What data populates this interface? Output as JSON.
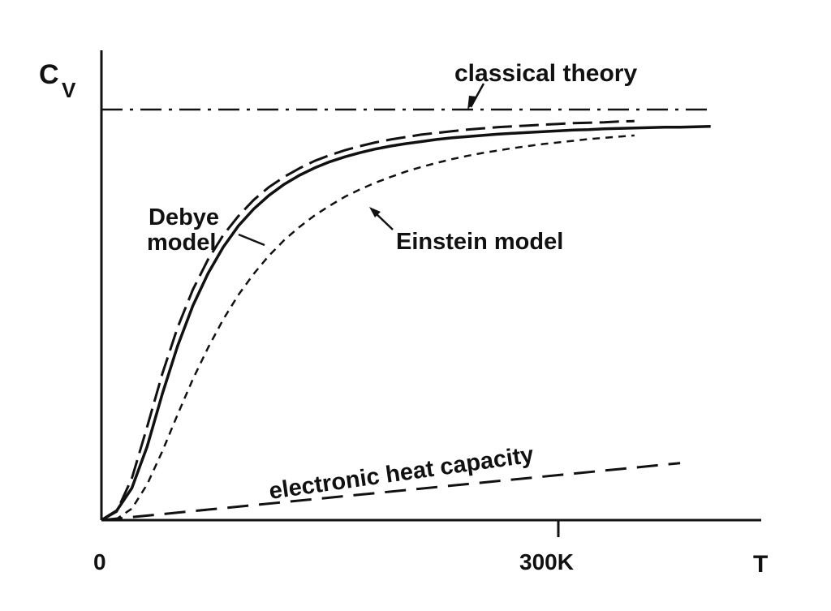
{
  "chart_data": {
    "type": "line",
    "title": "",
    "xlabel": "T",
    "ylabel": "C",
    "ylabel_subscript": "V",
    "xlim": [
      0,
      420
    ],
    "ylim": [
      0,
      1.1
    ],
    "x_ticks": [
      {
        "value": 0,
        "label": "0"
      },
      {
        "value": 300,
        "label": "300K"
      }
    ],
    "grid": false,
    "series": [
      {
        "name": "classical theory",
        "style": "dashdot",
        "x": [
          0,
          400
        ],
        "y": [
          1.0,
          1.0
        ]
      },
      {
        "name": "",
        "style": "solid",
        "x": [
          0,
          10,
          20,
          30,
          40,
          50,
          60,
          70,
          80,
          90,
          100,
          110,
          120,
          130,
          140,
          150,
          160,
          170,
          180,
          190,
          200,
          210,
          220,
          230,
          240,
          250,
          260,
          270,
          280,
          290,
          300,
          310,
          320,
          330,
          340,
          350,
          360,
          370,
          380,
          390,
          400
        ],
        "y": [
          0.0,
          0.023,
          0.078,
          0.179,
          0.308,
          0.424,
          0.522,
          0.601,
          0.665,
          0.717,
          0.758,
          0.791,
          0.818,
          0.84,
          0.858,
          0.873,
          0.885,
          0.895,
          0.904,
          0.911,
          0.917,
          0.922,
          0.927,
          0.931,
          0.934,
          0.937,
          0.94,
          0.942,
          0.944,
          0.946,
          0.948,
          0.95,
          0.951,
          0.953,
          0.954,
          0.955,
          0.956,
          0.957,
          0.957,
          0.958,
          0.959
        ]
      },
      {
        "name": "Debye model",
        "style": "dashed",
        "x": [
          0,
          10,
          20,
          30,
          40,
          50,
          60,
          70,
          80,
          90,
          100,
          110,
          120,
          130,
          140,
          150,
          160,
          170,
          180,
          190,
          200,
          210,
          220,
          230,
          240,
          250,
          260,
          270,
          280,
          290,
          300,
          310,
          320,
          330,
          340,
          350
        ],
        "y": [
          0.0,
          0.021,
          0.102,
          0.227,
          0.357,
          0.469,
          0.561,
          0.635,
          0.694,
          0.741,
          0.78,
          0.811,
          0.836,
          0.857,
          0.875,
          0.889,
          0.901,
          0.911,
          0.92,
          0.927,
          0.933,
          0.939,
          0.943,
          0.947,
          0.951,
          0.954,
          0.957,
          0.959,
          0.961,
          0.963,
          0.965,
          0.967,
          0.968,
          0.969,
          0.971,
          0.972
        ]
      },
      {
        "name": "Einstein model",
        "style": "short-dashed",
        "x": [
          0,
          10,
          20,
          30,
          40,
          50,
          60,
          70,
          80,
          90,
          100,
          110,
          120,
          130,
          140,
          150,
          160,
          170,
          180,
          190,
          200,
          210,
          220,
          230,
          240,
          250,
          260,
          270,
          280,
          290,
          300,
          310,
          320,
          330,
          340,
          350
        ],
        "y": [
          0.0,
          0.003,
          0.028,
          0.087,
          0.168,
          0.257,
          0.343,
          0.42,
          0.489,
          0.549,
          0.6,
          0.644,
          0.682,
          0.714,
          0.742,
          0.766,
          0.788,
          0.806,
          0.822,
          0.836,
          0.849,
          0.86,
          0.87,
          0.879,
          0.887,
          0.894,
          0.9,
          0.906,
          0.911,
          0.916,
          0.92,
          0.924,
          0.928,
          0.931,
          0.934,
          0.937
        ]
      },
      {
        "name": "electronic heat capacity",
        "style": "long-dashed",
        "x": [
          0,
          380
        ],
        "y": [
          0.0,
          0.139
        ]
      }
    ],
    "annotations": [
      {
        "id": "classical",
        "text": "classical theory"
      },
      {
        "id": "debye_1",
        "text": "Debye"
      },
      {
        "id": "debye_2",
        "text": "model"
      },
      {
        "id": "einstein",
        "text": "Einstein model"
      },
      {
        "id": "electronic",
        "text": "electronic heat capacity"
      }
    ]
  }
}
